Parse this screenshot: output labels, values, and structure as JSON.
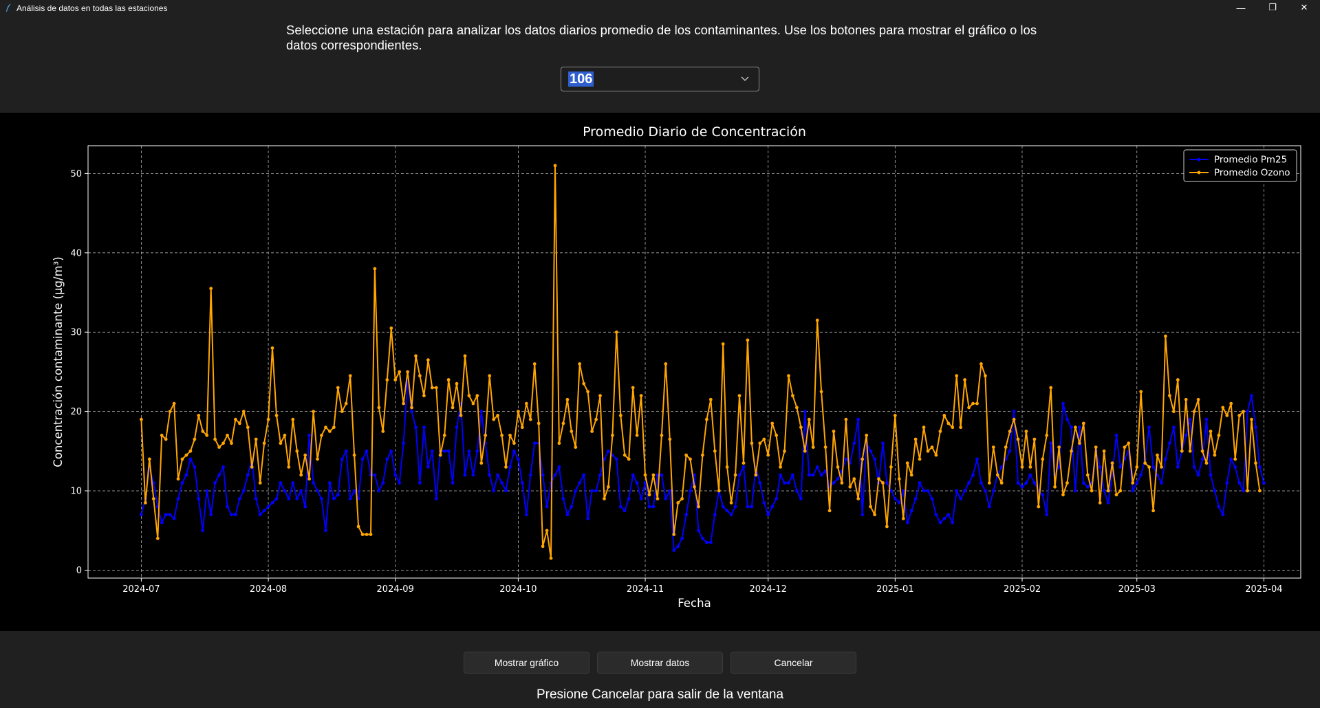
{
  "window": {
    "title": "Análisis de datos en todas las estaciones",
    "controls": {
      "minimize": "—",
      "maximize": "❐",
      "close": "✕"
    }
  },
  "instructions": "Seleccione una estación para analizar los datos diarios promedio de los contaminantes. Use los botones para mostrar el gráfico o los datos correspondientes.",
  "station_select": {
    "value": "106",
    "icon": "chevron-down-icon"
  },
  "buttons": {
    "show_graph": "Mostrar gráfico",
    "show_data": "Mostrar datos",
    "cancel": "Cancelar"
  },
  "footer": "Presione Cancelar para salir de la ventana",
  "colors": {
    "pm25": "#0000ff",
    "ozone": "#ffa500",
    "background": "#000000",
    "window": "#202020"
  },
  "chart_data": {
    "type": "line",
    "title": "Promedio Diario de Concentración",
    "xlabel": "Fecha",
    "ylabel": "Concentración contaminante (µg/m³)",
    "ylim": [
      -1,
      53.5
    ],
    "yticks": [
      0,
      10,
      20,
      30,
      40,
      50
    ],
    "xlim": [
      "2024-06-18",
      "2025-04-10"
    ],
    "xticks": [
      "2024-07",
      "2024-08",
      "2024-09",
      "2024-10",
      "2024-11",
      "2024-12",
      "2025-01",
      "2025-02",
      "2025-03",
      "2025-04"
    ],
    "grid": true,
    "legend_position": "top-right",
    "start_date": "2024-07-01",
    "series": [
      {
        "name": "Promedio Pm25",
        "color": "#0000ff",
        "values": [
          7,
          9,
          13,
          11,
          8,
          6,
          7,
          7,
          6.5,
          9,
          11,
          12,
          14,
          13,
          9,
          5,
          10,
          7,
          11,
          12,
          13,
          8,
          7,
          7,
          9,
          10,
          12,
          14,
          9,
          7,
          7.5,
          8,
          8.5,
          9,
          11,
          10,
          9,
          11,
          9,
          10,
          8,
          17,
          11,
          10,
          9,
          5,
          11,
          9,
          9.5,
          14,
          15,
          9,
          10,
          9,
          14,
          15,
          12,
          12,
          10,
          11,
          14,
          15,
          12,
          11,
          16,
          24,
          20,
          18,
          11,
          18,
          13,
          15,
          9,
          15,
          15,
          15,
          11,
          18,
          21,
          12,
          15,
          12,
          15,
          20,
          16,
          12,
          10,
          12,
          11,
          10,
          13,
          15,
          14,
          11,
          7,
          12,
          16,
          16,
          12,
          8,
          11,
          12,
          13,
          9,
          7,
          8,
          10,
          11,
          12,
          6.5,
          10,
          10,
          12,
          14,
          15,
          14.5,
          14,
          8,
          7.5,
          9,
          12,
          11,
          9,
          11,
          8,
          8,
          12,
          12,
          9,
          10,
          2.5,
          3,
          4,
          7,
          10,
          12,
          5,
          4,
          3.5,
          3.5,
          7,
          10,
          8,
          7.5,
          7,
          8,
          12,
          13,
          8,
          8,
          13,
          11,
          8.5,
          7,
          8,
          9,
          12,
          11,
          11,
          12,
          10,
          9,
          20,
          12,
          12,
          13,
          12,
          12.5,
          10.5,
          11,
          11.5,
          12.5,
          14,
          13.5,
          16,
          19,
          7,
          16,
          15,
          14,
          11,
          16,
          11,
          10,
          9,
          8.5,
          10,
          6,
          7.5,
          9,
          11,
          10,
          10,
          9,
          7,
          6,
          6.5,
          7,
          6,
          10,
          9,
          10,
          11,
          12,
          14,
          11,
          10,
          8,
          10,
          12,
          13,
          14,
          15,
          20,
          11,
          10.5,
          11,
          12,
          11,
          10,
          9.5,
          7,
          16,
          12,
          13,
          21,
          19,
          18,
          10,
          18,
          11,
          10.5,
          11,
          15,
          13,
          10,
          8.5,
          12,
          17,
          13,
          14,
          15,
          10,
          11,
          12,
          14,
          18,
          13,
          12,
          11,
          14,
          16,
          18,
          13,
          15,
          17,
          19,
          13,
          12,
          14,
          19,
          12,
          10,
          8,
          7,
          11,
          14,
          13,
          11,
          10,
          20,
          22,
          18,
          13,
          11
        ]
      },
      {
        "name": "Promedio Ozono",
        "color": "#ffa500",
        "values": [
          19,
          8.5,
          14,
          9,
          4,
          17,
          16.5,
          20,
          21,
          11.5,
          14,
          14.5,
          15,
          16.5,
          19.5,
          17.5,
          17,
          35.5,
          16.5,
          15.5,
          16,
          17,
          16,
          19,
          18.5,
          20,
          18,
          13,
          16.5,
          11,
          16,
          19,
          28,
          19.5,
          16,
          17,
          13,
          19,
          15,
          12,
          14.5,
          11.5,
          20,
          14,
          17,
          18,
          17.5,
          18,
          23,
          20,
          21,
          24.5,
          14.5,
          5.5,
          4.5,
          4.5,
          4.5,
          38,
          20.5,
          17.5,
          24,
          30.5,
          24,
          25,
          21,
          25,
          20.5,
          27,
          24.5,
          22,
          26.5,
          23,
          23,
          14.5,
          17,
          24,
          20.5,
          23.5,
          19.5,
          27,
          22,
          21,
          22,
          13.5,
          17,
          24.5,
          19,
          19.5,
          17,
          13,
          17,
          16,
          20,
          18,
          21,
          19,
          26,
          18.5,
          3,
          5,
          1.5,
          51,
          16,
          18.5,
          21.5,
          17.5,
          15.5,
          26,
          23.5,
          22.5,
          17.5,
          19,
          22,
          9,
          10.5,
          17,
          30,
          19.5,
          14.5,
          14,
          23,
          17,
          22,
          12,
          9.5,
          12,
          9,
          17,
          26,
          16.5,
          4.5,
          8.5,
          9,
          14.5,
          14,
          10.5,
          8,
          14.5,
          19,
          21.5,
          15,
          10,
          28.5,
          13,
          8.5,
          12,
          22,
          13.5,
          29,
          16,
          12,
          16,
          16.5,
          14.5,
          18.5,
          17,
          13,
          15,
          24.5,
          22,
          20.5,
          18,
          15,
          19,
          15.5,
          31.5,
          22.5,
          15.5,
          7.5,
          17.5,
          13,
          11,
          19,
          10.5,
          11.5,
          9,
          14,
          17,
          8,
          7,
          11.5,
          11,
          5.5,
          13,
          19.5,
          11.5,
          6.5,
          13.5,
          12,
          16.5,
          14,
          18,
          15,
          15.5,
          14.5,
          17.5,
          19.5,
          18.5,
          18,
          24.5,
          18,
          24,
          20.5,
          21,
          21,
          26,
          24.5,
          11,
          15.5,
          12,
          11,
          15.5,
          17.5,
          19,
          16.5,
          13,
          17.5,
          13,
          16.5,
          8,
          14,
          17,
          23,
          10.5,
          15.5,
          9.5,
          11,
          15,
          18,
          16,
          18.5,
          12,
          10,
          15.5,
          8.5,
          15,
          10,
          13.5,
          9.5,
          10,
          15.5,
          16,
          11,
          13,
          22.5,
          13.5,
          13,
          7.5,
          14.5,
          13,
          29.5,
          22,
          20,
          24,
          15,
          21.5,
          15,
          20,
          21.5,
          15,
          13.5,
          17.5,
          14.5,
          17,
          20.5,
          19.5,
          21,
          14,
          19.5,
          20,
          10,
          19,
          13.5,
          10
        ]
      }
    ]
  }
}
